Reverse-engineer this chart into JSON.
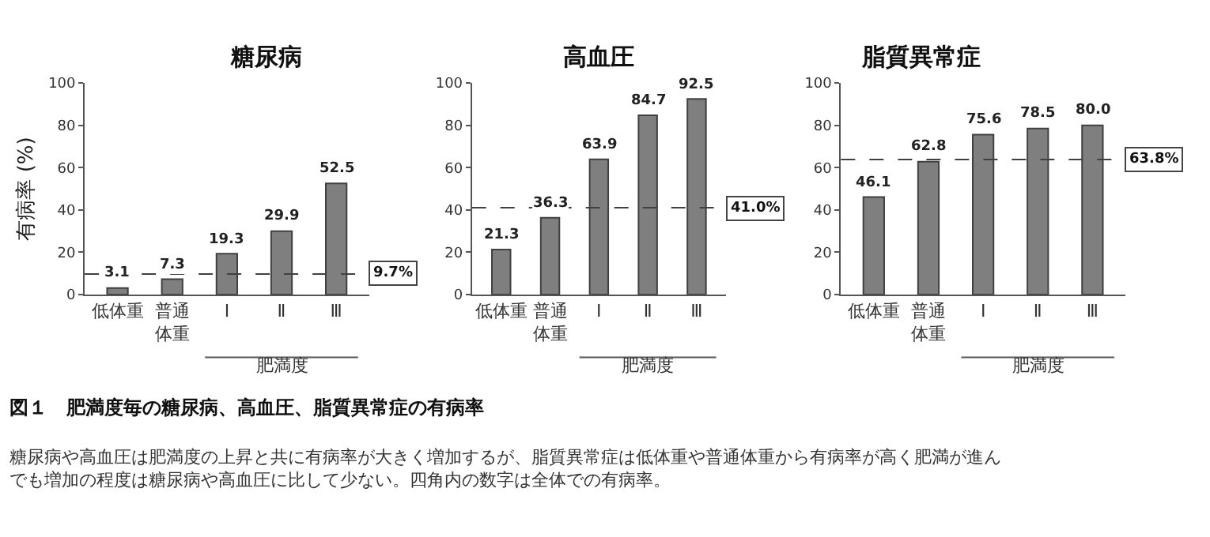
{
  "chart_data": [
    {
      "type": "bar",
      "title": "糖尿病",
      "ylabel": "有病率 (%)",
      "xlabel": "肥満度",
      "categories": [
        "低体重",
        "普通体重",
        "Ⅰ",
        "Ⅱ",
        "Ⅲ"
      ],
      "values": [
        3.1,
        7.3,
        19.3,
        29.9,
        52.5
      ],
      "color": "#7f7f7f",
      "ylim": [
        0,
        100
      ],
      "yticks": [
        0,
        20,
        40,
        60,
        80,
        100
      ],
      "data_labels": true,
      "ref_lines": [
        {
          "axis": "y",
          "value": 9.7,
          "label": "9.7%",
          "color": "#404040",
          "line_style": "dashed"
        }
      ]
    },
    {
      "type": "bar",
      "title": "高血圧",
      "xlabel": "肥満度",
      "categories": [
        "低体重",
        "普通体重",
        "Ⅰ",
        "Ⅱ",
        "Ⅲ"
      ],
      "values": [
        21.3,
        36.3,
        63.9,
        84.7,
        92.5
      ],
      "color": "#7f7f7f",
      "ylim": [
        0,
        100
      ],
      "yticks": [
        0,
        20,
        40,
        60,
        80,
        100
      ],
      "data_labels": true,
      "ref_lines": [
        {
          "axis": "y",
          "value": 41.0,
          "label": "41.0%",
          "color": "#404040",
          "line_style": "dashed"
        }
      ]
    },
    {
      "type": "bar",
      "title": "脂質異常症",
      "xlabel": "肥満度",
      "categories": [
        "低体重",
        "普通体重",
        "Ⅰ",
        "Ⅱ",
        "Ⅲ"
      ],
      "values": [
        46.1,
        62.8,
        75.6,
        78.5,
        80.0
      ],
      "value_labels": [
        "46.1",
        "62.8",
        "75.6",
        "78.5",
        "80.0"
      ],
      "color": "#7f7f7f",
      "ylim": [
        0,
        100
      ],
      "yticks": [
        0,
        20,
        40,
        60,
        80,
        100
      ],
      "ref_lines": [
        {
          "axis": "y",
          "value": 63.8,
          "label": "63.8%",
          "color": "#404040",
          "line_style": "dashed"
        }
      ]
    },
    {
      "type": "other",
      "title": "図１　肥満度毎の糖尿病、高血圧、脂質異常症の有病率",
      "annotations": [
        "糖尿病や高血圧は肥満度の上昇と共に有病率が大きく増加するが、脂質異常症は低体重や普通体重から有病率が高く肥満が進んでも増加の程度は糖尿病や高血圧に比して少ない。四角内の数字は全体での有病率。"
      ]
    }
  ]
}
